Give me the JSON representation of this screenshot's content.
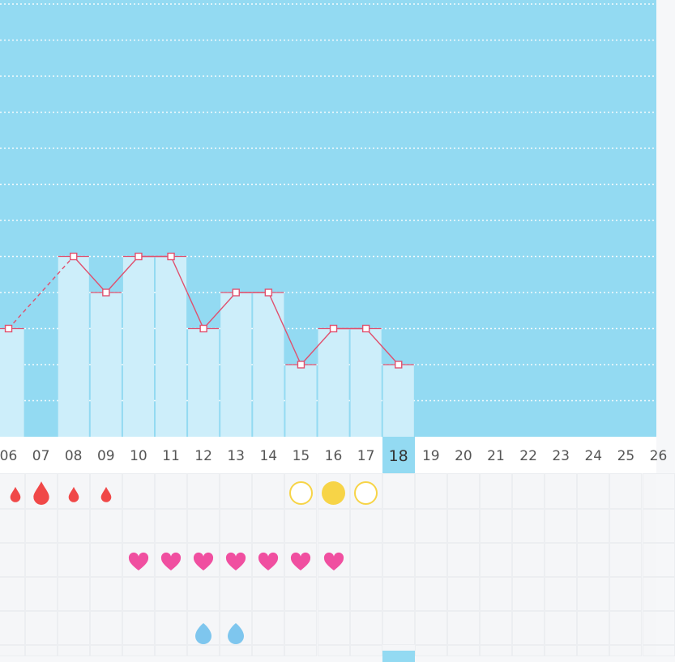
{
  "colors": {
    "chart_bg": "#93daf2",
    "bar_fill": "#cdeefa",
    "line_color": "#e0506e",
    "period_red": "#f04848",
    "heart_pink": "#f04fa0",
    "ovulation_yellow": "#f7d447",
    "mucus_blue": "#7ec6ee",
    "today_highlight": "#93daf2"
  },
  "day_labels": [
    "06",
    "07",
    "08",
    "09",
    "10",
    "11",
    "12",
    "13",
    "14",
    "15",
    "16",
    "17",
    "18",
    "19",
    "20",
    "21",
    "22",
    "23",
    "24",
    "25",
    "26"
  ],
  "today": "18",
  "chart_data": {
    "type": "bar",
    "title": "",
    "xlabel": "",
    "ylabel": "",
    "categories": [
      "06",
      "07",
      "08",
      "09",
      "10",
      "11",
      "12",
      "13",
      "14",
      "15",
      "16",
      "17",
      "18"
    ],
    "series": [
      {
        "values": [
          3,
          null,
          5,
          4,
          5,
          5,
          3,
          4,
          4,
          2,
          3,
          3,
          2
        ]
      }
    ],
    "connector": "line with square markers, dashed across missing day 07",
    "ylim": [
      0,
      12
    ],
    "grid": "horizontal dotted white lines"
  },
  "log_rows": {
    "period": [
      {
        "day": "06",
        "icon": "drop-icon",
        "size": "small",
        "partial": true
      },
      {
        "day": "07",
        "icon": "drop-icon",
        "size": "large"
      },
      {
        "day": "08",
        "icon": "drop-icon",
        "size": "small"
      },
      {
        "day": "09",
        "icon": "drop-icon",
        "size": "small"
      }
    ],
    "ovulation": [
      {
        "day": "15",
        "icon": "circle-outline-icon"
      },
      {
        "day": "16",
        "icon": "circle-filled-icon"
      },
      {
        "day": "17",
        "icon": "circle-outline-icon"
      }
    ],
    "intercourse": [
      {
        "day": "10",
        "icon": "heart-icon"
      },
      {
        "day": "11",
        "icon": "heart-icon"
      },
      {
        "day": "12",
        "icon": "heart-icon"
      },
      {
        "day": "13",
        "icon": "heart-icon"
      },
      {
        "day": "14",
        "icon": "heart-icon"
      },
      {
        "day": "15",
        "icon": "heart-icon"
      },
      {
        "day": "16",
        "icon": "heart-icon"
      }
    ],
    "mucus": [
      {
        "day": "12",
        "icon": "blue-drop-icon"
      },
      {
        "day": "13",
        "icon": "blue-drop-icon"
      }
    ]
  }
}
